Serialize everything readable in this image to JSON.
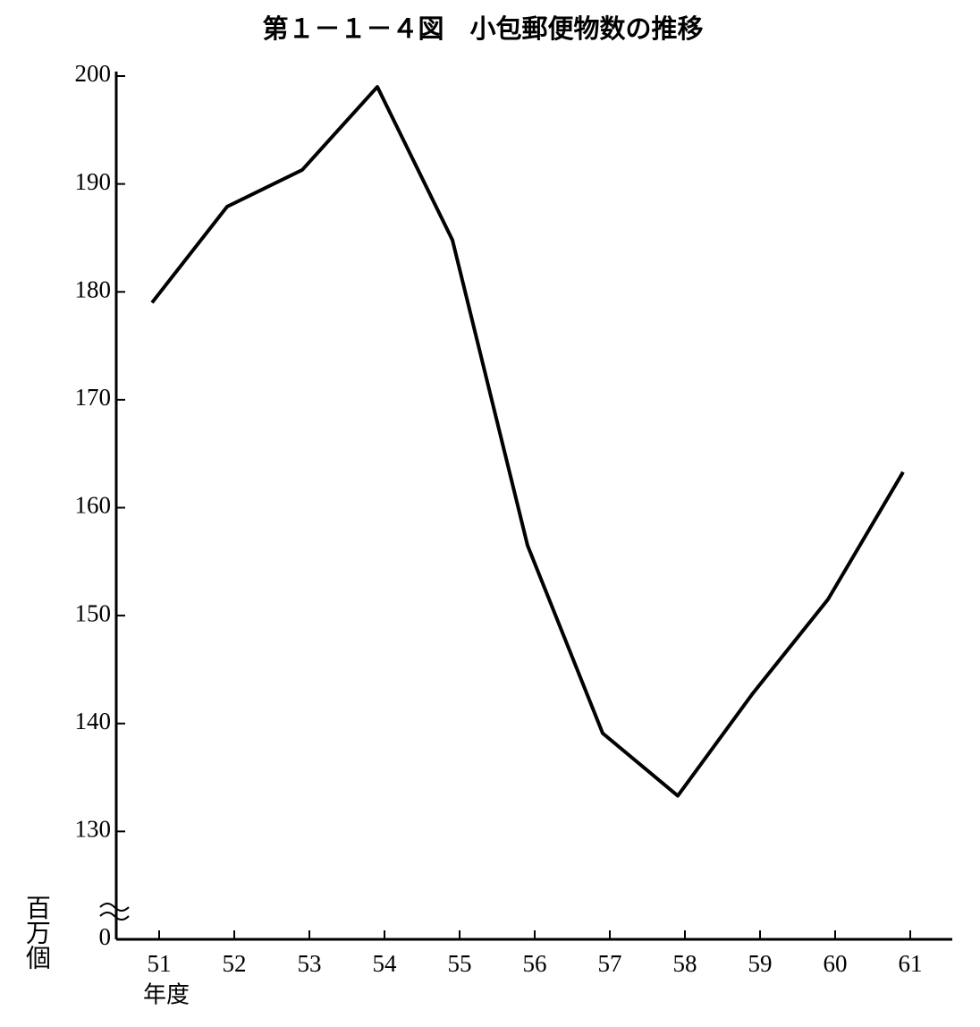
{
  "chart_data": {
    "type": "line",
    "title": "第１－１－４図　小包郵便物数の推移",
    "x_label": "年度",
    "y_label": "百万個",
    "categories": [
      "51",
      "52",
      "53",
      "54",
      "55",
      "56",
      "57",
      "58",
      "59",
      "60",
      "61"
    ],
    "values": [
      179.0,
      187.9,
      191.3,
      199.0,
      184.8,
      156.5,
      139.1,
      133.3,
      142.8,
      151.5,
      163.3
    ],
    "color": "#000000",
    "ylim": [
      0,
      200
    ],
    "yticks": [
      0,
      130,
      140,
      150,
      160,
      170,
      180,
      190,
      200
    ],
    "axis_break": true,
    "grid": false
  }
}
